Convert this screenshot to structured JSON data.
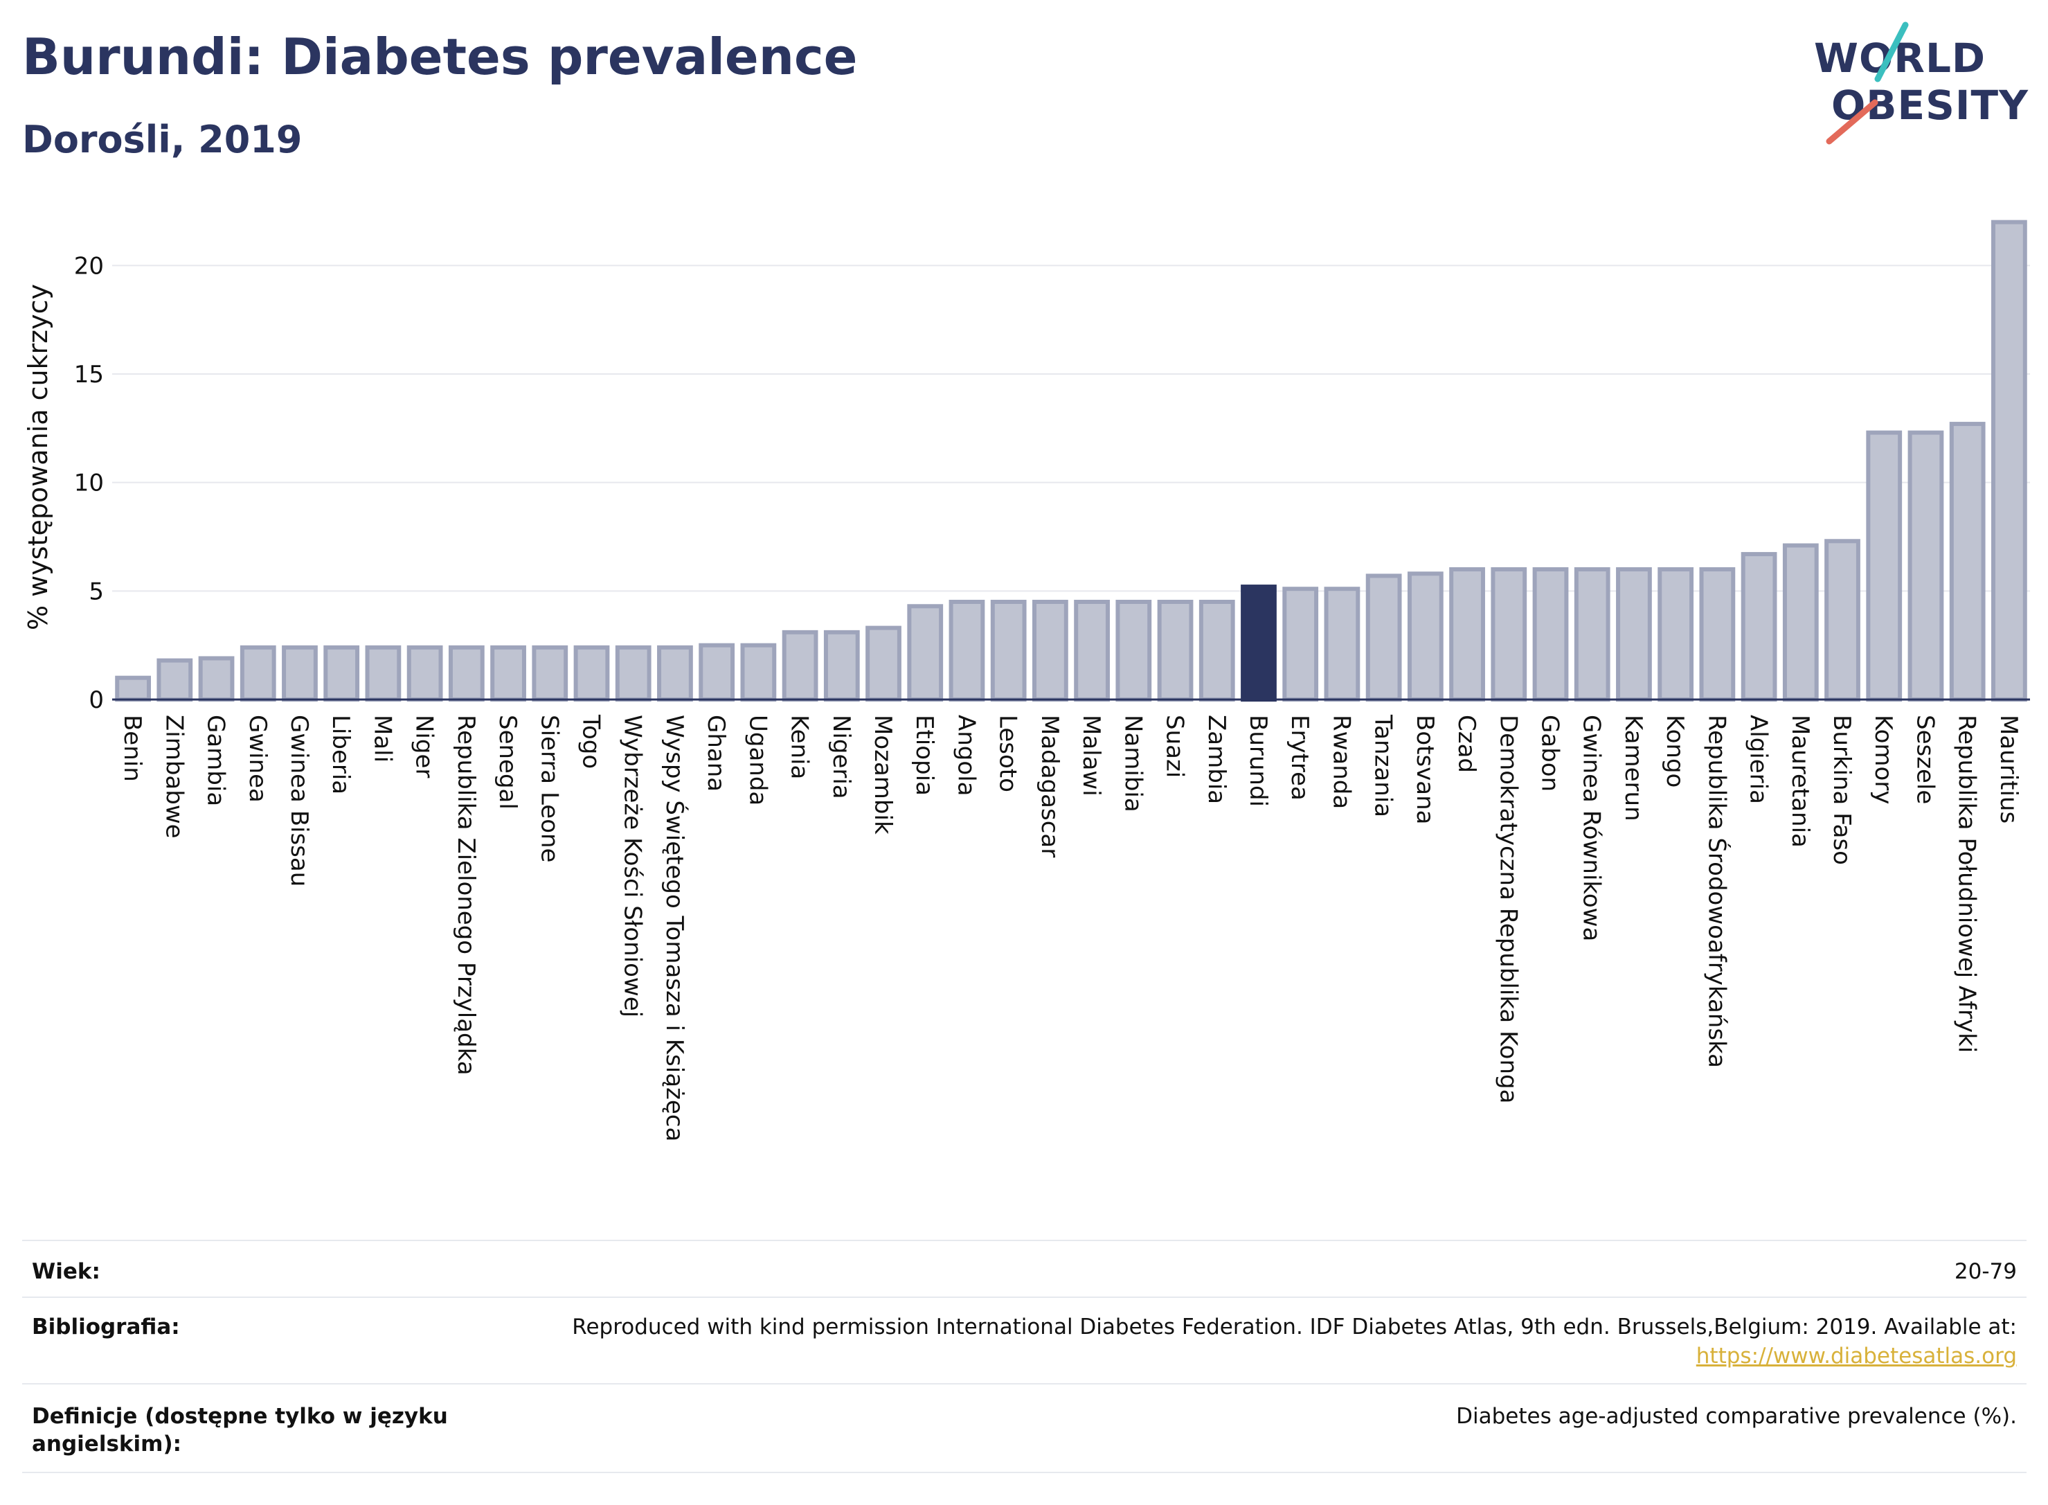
{
  "header": {
    "title": "Burundi: Diabetes prevalence",
    "subtitle": "Dorośli, 2019"
  },
  "logo": {
    "line1": "WORLD",
    "line2": "OBESITY",
    "colors": {
      "text": "#2b3560",
      "teal": "#3bbfbf",
      "coral": "#e36a5a"
    }
  },
  "colors": {
    "bar_fill": "#bfc3d1",
    "bar_stroke": "#9ea4bb",
    "highlight": "#2b3560",
    "grid": "#e6e8ee",
    "axis": "#2b3560"
  },
  "chart_data": {
    "type": "bar",
    "title": "",
    "xlabel": "",
    "ylabel": "% występowania cukrzycy",
    "ylim": [
      0,
      22.5
    ],
    "yticks": [
      0,
      5,
      10,
      15,
      20
    ],
    "grid": true,
    "highlight": "Burundi",
    "categories": [
      "Benin",
      "Zimbabwe",
      "Gambia",
      "Gwinea",
      "Gwinea Bissau",
      "Liberia",
      "Mali",
      "Niger",
      "Republika Zielonego Przylądka",
      "Senegal",
      "Sierra Leone",
      "Togo",
      "Wybrzeże Kości Słoniowej",
      "Wyspy Świętego Tomasza i Książęca",
      "Ghana",
      "Uganda",
      "Kenia",
      "Nigeria",
      "Mozambik",
      "Etiopia",
      "Angola",
      "Lesoto",
      "Madagascar",
      "Malawi",
      "Namibia",
      "Suazi",
      "Zambia",
      "Burundi",
      "Erytrea",
      "Rwanda",
      "Tanzania",
      "Botsvana",
      "Czad",
      "Demokratyczna Republika Konga",
      "Gabon",
      "Gwinea Równikowa",
      "Kamerun",
      "Kongo",
      "Republika Środowoafrykańska",
      "Algieria",
      "Mauretania",
      "Burkina Faso",
      "Komory",
      "Seszele",
      "Republika Południowej Afryki",
      "Mauritius"
    ],
    "values": [
      1.0,
      1.8,
      1.9,
      2.4,
      2.4,
      2.4,
      2.4,
      2.4,
      2.4,
      2.4,
      2.4,
      2.4,
      2.4,
      2.4,
      2.5,
      2.5,
      3.1,
      3.1,
      3.3,
      4.3,
      4.5,
      4.5,
      4.5,
      4.5,
      4.5,
      4.5,
      4.5,
      5.2,
      5.1,
      5.1,
      5.7,
      5.8,
      6.0,
      6.0,
      6.0,
      6.0,
      6.0,
      6.0,
      6.0,
      6.7,
      7.1,
      7.3,
      12.3,
      12.3,
      12.7,
      22.0
    ]
  },
  "meta": {
    "age_label": "Wiek:",
    "age_value": "20-79",
    "bibliography_label": "Bibliografia:",
    "bibliography_text": "Reproduced with kind permission International Diabetes Federation. IDF Diabetes Atlas, 9th edn. Brussels,Belgium: 2019. Available at:",
    "bibliography_link": "https://www.diabetesatlas.org",
    "definition_label_1": "Definicje (dostępne tylko w języku",
    "definition_label_2": "angielskim):",
    "definition_value": "Diabetes age-adjusted comparative prevalence (%)."
  }
}
